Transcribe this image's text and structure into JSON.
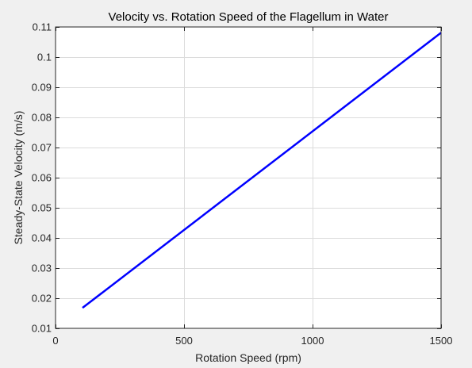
{
  "chart_data": {
    "type": "line",
    "title": "Velocity vs. Rotation Speed of the Flagellum in Water",
    "xlabel": "Rotation Speed (rpm)",
    "ylabel": "Steady-State Velocity (m/s)",
    "xlim": [
      0,
      1500
    ],
    "ylim": [
      0.01,
      0.11
    ],
    "xticks": [
      0,
      500,
      1000,
      1500
    ],
    "xtick_labels": [
      "0",
      "500",
      "1000",
      "1500"
    ],
    "yticks": [
      0.01,
      0.02,
      0.03,
      0.04,
      0.05,
      0.06,
      0.07,
      0.08,
      0.09,
      0.1,
      0.11
    ],
    "ytick_labels": [
      "0.01",
      "0.02",
      "0.03",
      "0.04",
      "0.05",
      "0.06",
      "0.07",
      "0.08",
      "0.09",
      "0.1",
      "0.11"
    ],
    "grid": true,
    "series": [
      {
        "color": "#0000ff",
        "x": [
          105,
          1500
        ],
        "y": [
          0.0168,
          0.1081
        ]
      }
    ],
    "colors": {
      "figure_bg": "#f0f0f0",
      "axes_bg": "#ffffff",
      "grid": "#dcdcdc",
      "axis": "#262626"
    }
  }
}
